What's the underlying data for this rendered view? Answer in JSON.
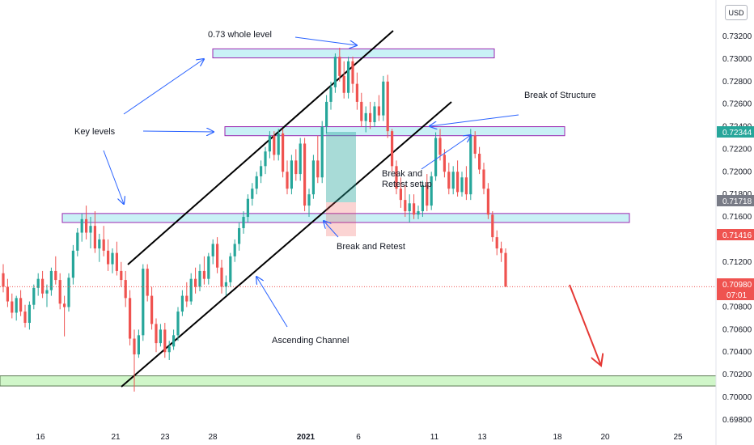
{
  "currency_button": "USD",
  "colors": {
    "bull": "#26a69a",
    "bear": "#ef5350",
    "zone_fill": "#b2ebf2",
    "zone_border": "#9c27b0",
    "support_fill": "#c8f5c0",
    "arrow_blue": "#2962ff",
    "arrow_red": "#e53935"
  },
  "annotations": {
    "whole_level": "0.73 whole level",
    "key_levels": "Key levels",
    "break_of_structure": "Break of Structure",
    "break_retest_setup_line1": "Break and",
    "break_retest_setup_line2": "Retest setup",
    "break_and_retest": "Break and Retest",
    "ascending_channel": "Ascending Channel"
  },
  "price_tags": {
    "p1": "0.72344",
    "p2": "0.71718",
    "p3": "0.71416",
    "p4": "0.70980",
    "timer": "07:01"
  },
  "chart_data": {
    "type": "candlestick",
    "pair_currency": "USD",
    "ylim": [
      0.6972,
      0.7338
    ],
    "y_ticks": [
      "0.73200",
      "0.73000",
      "0.72800",
      "0.72600",
      "0.72400",
      "0.72200",
      "0.72000",
      "0.71800",
      "0.71600",
      "0.71200",
      "0.70800",
      "0.70600",
      "0.70400",
      "0.70200",
      "0.70000",
      "0.69800"
    ],
    "x_ticks": [
      "16",
      "21",
      "23",
      "28",
      "2021",
      "6",
      "11",
      "13",
      "18",
      "20",
      "25"
    ],
    "current_price": 0.7098,
    "zones": [
      {
        "low": 0.7301,
        "high": 0.7309
      },
      {
        "low": 0.7232,
        "high": 0.724
      },
      {
        "low": 0.7155,
        "high": 0.7163
      },
      {
        "low": 0.701,
        "high": 0.7019
      }
    ],
    "candles": [
      [
        0.711,
        0.7118,
        0.7093,
        0.7098
      ],
      [
        0.7098,
        0.7105,
        0.708,
        0.7085
      ],
      [
        0.7085,
        0.7092,
        0.707,
        0.7075
      ],
      [
        0.7075,
        0.709,
        0.7068,
        0.7088
      ],
      [
        0.7088,
        0.7095,
        0.7072,
        0.7076
      ],
      [
        0.7076,
        0.7082,
        0.7062,
        0.7066
      ],
      [
        0.7066,
        0.7085,
        0.706,
        0.7082
      ],
      [
        0.7082,
        0.71,
        0.7078,
        0.7097
      ],
      [
        0.7097,
        0.711,
        0.709,
        0.7105
      ],
      [
        0.7105,
        0.7112,
        0.7088,
        0.7092
      ],
      [
        0.7092,
        0.71,
        0.708,
        0.7095
      ],
      [
        0.7095,
        0.7115,
        0.709,
        0.7112
      ],
      [
        0.7112,
        0.7125,
        0.71,
        0.7104
      ],
      [
        0.7104,
        0.711,
        0.7078,
        0.7083
      ],
      [
        0.7083,
        0.709,
        0.7054,
        0.708
      ],
      [
        0.708,
        0.711,
        0.7076,
        0.7106
      ],
      [
        0.7106,
        0.7135,
        0.71,
        0.713
      ],
      [
        0.713,
        0.715,
        0.7125,
        0.7146
      ],
      [
        0.7146,
        0.7163,
        0.7138,
        0.7158
      ],
      [
        0.7158,
        0.717,
        0.714,
        0.7146
      ],
      [
        0.7146,
        0.716,
        0.7132,
        0.7152
      ],
      [
        0.7152,
        0.7165,
        0.7128,
        0.7132
      ],
      [
        0.7132,
        0.7145,
        0.712,
        0.714
      ],
      [
        0.714,
        0.7152,
        0.7125,
        0.713
      ],
      [
        0.713,
        0.714,
        0.7112,
        0.7118
      ],
      [
        0.7118,
        0.7132,
        0.711,
        0.7128
      ],
      [
        0.7128,
        0.7138,
        0.7108,
        0.7112
      ],
      [
        0.7112,
        0.712,
        0.7098,
        0.7104
      ],
      [
        0.7104,
        0.7112,
        0.708,
        0.7088
      ],
      [
        0.7088,
        0.7095,
        0.7046,
        0.7052
      ],
      [
        0.7052,
        0.706,
        0.7005,
        0.7038
      ],
      [
        0.7038,
        0.706,
        0.7035,
        0.7055
      ],
      [
        0.7055,
        0.7118,
        0.705,
        0.7114
      ],
      [
        0.7114,
        0.7118,
        0.7085,
        0.709
      ],
      [
        0.709,
        0.7098,
        0.706,
        0.7065
      ],
      [
        0.7065,
        0.707,
        0.704,
        0.7048
      ],
      [
        0.7048,
        0.7065,
        0.7045,
        0.706
      ],
      [
        0.706,
        0.7066,
        0.7035,
        0.704
      ],
      [
        0.704,
        0.705,
        0.7033,
        0.7045
      ],
      [
        0.7045,
        0.706,
        0.7042,
        0.7055
      ],
      [
        0.7055,
        0.708,
        0.705,
        0.7076
      ],
      [
        0.7076,
        0.7095,
        0.7072,
        0.709
      ],
      [
        0.709,
        0.7102,
        0.708,
        0.7085
      ],
      [
        0.7085,
        0.711,
        0.7082,
        0.7105
      ],
      [
        0.7105,
        0.7115,
        0.7092,
        0.7098
      ],
      [
        0.7098,
        0.7118,
        0.7094,
        0.7112
      ],
      [
        0.7112,
        0.7125,
        0.71,
        0.7105
      ],
      [
        0.7105,
        0.7128,
        0.71,
        0.7125
      ],
      [
        0.7125,
        0.714,
        0.7118,
        0.7136
      ],
      [
        0.7136,
        0.7142,
        0.711,
        0.7115
      ],
      [
        0.7115,
        0.7122,
        0.7092,
        0.7098
      ],
      [
        0.7098,
        0.7108,
        0.709,
        0.7102
      ],
      [
        0.7102,
        0.7128,
        0.7098,
        0.7125
      ],
      [
        0.7125,
        0.714,
        0.712,
        0.7136
      ],
      [
        0.7136,
        0.7155,
        0.713,
        0.715
      ],
      [
        0.715,
        0.7165,
        0.7145,
        0.716
      ],
      [
        0.716,
        0.718,
        0.7155,
        0.7176
      ],
      [
        0.7176,
        0.719,
        0.717,
        0.7185
      ],
      [
        0.7185,
        0.72,
        0.718,
        0.7196
      ],
      [
        0.7196,
        0.721,
        0.719,
        0.7205
      ],
      [
        0.7205,
        0.7222,
        0.7198,
        0.7218
      ],
      [
        0.7218,
        0.7236,
        0.7212,
        0.7232
      ],
      [
        0.7232,
        0.7236,
        0.721,
        0.7215
      ],
      [
        0.7215,
        0.7238,
        0.721,
        0.7234
      ],
      [
        0.7234,
        0.7238,
        0.7195,
        0.72
      ],
      [
        0.72,
        0.721,
        0.718,
        0.7185
      ],
      [
        0.7185,
        0.7215,
        0.718,
        0.721
      ],
      [
        0.721,
        0.722,
        0.7192,
        0.7198
      ],
      [
        0.7198,
        0.723,
        0.7192,
        0.7225
      ],
      [
        0.7225,
        0.723,
        0.7165,
        0.717
      ],
      [
        0.717,
        0.7185,
        0.716,
        0.718
      ],
      [
        0.718,
        0.7215,
        0.7176,
        0.721
      ],
      [
        0.721,
        0.7232,
        0.719,
        0.7195
      ],
      [
        0.7195,
        0.7245,
        0.719,
        0.724
      ],
      [
        0.724,
        0.7268,
        0.7234,
        0.7262
      ],
      [
        0.7262,
        0.728,
        0.7255,
        0.7275
      ],
      [
        0.7275,
        0.7305,
        0.727,
        0.7302
      ],
      [
        0.7302,
        0.731,
        0.728,
        0.7285
      ],
      [
        0.7285,
        0.7298,
        0.7265,
        0.727
      ],
      [
        0.727,
        0.7302,
        0.7265,
        0.7298
      ],
      [
        0.7298,
        0.7302,
        0.727,
        0.7278
      ],
      [
        0.7278,
        0.7288,
        0.7255,
        0.7262
      ],
      [
        0.7262,
        0.727,
        0.724,
        0.7245
      ],
      [
        0.7245,
        0.7258,
        0.7235,
        0.7252
      ],
      [
        0.7252,
        0.7262,
        0.7238,
        0.7244
      ],
      [
        0.7244,
        0.7262,
        0.724,
        0.7258
      ],
      [
        0.7258,
        0.7268,
        0.7245,
        0.725
      ],
      [
        0.725,
        0.7285,
        0.7245,
        0.728
      ],
      [
        0.728,
        0.7286,
        0.723,
        0.7236
      ],
      [
        0.7236,
        0.7238,
        0.72,
        0.7205
      ],
      [
        0.7205,
        0.721,
        0.718,
        0.7185
      ],
      [
        0.7185,
        0.7195,
        0.7168,
        0.7175
      ],
      [
        0.7175,
        0.7188,
        0.716,
        0.7165
      ],
      [
        0.7165,
        0.718,
        0.7155,
        0.7172
      ],
      [
        0.7172,
        0.718,
        0.7158,
        0.7162
      ],
      [
        0.7162,
        0.717,
        0.7158,
        0.7165
      ],
      [
        0.7165,
        0.7192,
        0.716,
        0.7188
      ],
      [
        0.7188,
        0.7198,
        0.7165,
        0.717
      ],
      [
        0.717,
        0.72,
        0.7166,
        0.7196
      ],
      [
        0.7196,
        0.7235,
        0.7192,
        0.723
      ],
      [
        0.723,
        0.7238,
        0.721,
        0.7215
      ],
      [
        0.7215,
        0.722,
        0.7195,
        0.72
      ],
      [
        0.72,
        0.7208,
        0.718,
        0.7185
      ],
      [
        0.7185,
        0.7205,
        0.718,
        0.72
      ],
      [
        0.72,
        0.721,
        0.7178,
        0.7182
      ],
      [
        0.7182,
        0.72,
        0.7178,
        0.7195
      ],
      [
        0.7195,
        0.7205,
        0.7175,
        0.718
      ],
      [
        0.718,
        0.7238,
        0.7175,
        0.7232
      ],
      [
        0.7232,
        0.7236,
        0.7212,
        0.7216
      ],
      [
        0.7216,
        0.7222,
        0.7198,
        0.7202
      ],
      [
        0.7202,
        0.7208,
        0.718,
        0.7185
      ],
      [
        0.7185,
        0.719,
        0.7158,
        0.7162
      ],
      [
        0.7162,
        0.7165,
        0.7138,
        0.7142
      ],
      [
        0.7142,
        0.7148,
        0.7126,
        0.7132
      ],
      [
        0.7132,
        0.7138,
        0.712,
        0.7128
      ],
      [
        0.7128,
        0.7132,
        0.7098,
        0.7098
      ]
    ],
    "annotations": [
      "0.73 whole level",
      "Key levels",
      "Break of Structure",
      "Break and",
      "Retest setup",
      "Break and Retest",
      "Ascending Channel"
    ]
  }
}
